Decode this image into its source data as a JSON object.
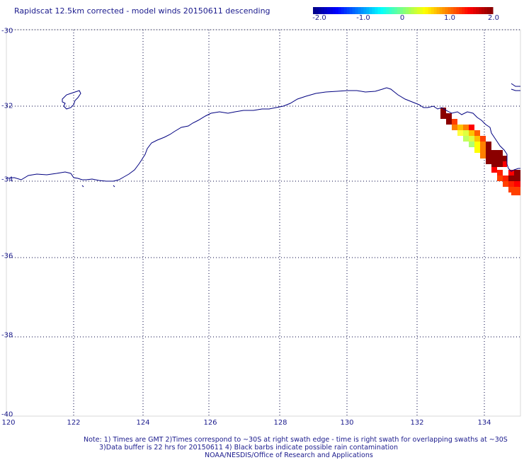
{
  "title": "Rapidscat 12.5km corrected - model winds 20150611 descending",
  "colorbar": {
    "ticks": [
      "-2.0",
      "-1.0",
      "0",
      "1.0",
      "2.0"
    ],
    "colors": [
      "#00008b",
      "#0000ff",
      "#0080ff",
      "#00ffff",
      "#80ff80",
      "#ffff00",
      "#ff8000",
      "#ff0000",
      "#8b0000"
    ]
  },
  "map": {
    "lat_labels": [
      "-30",
      "-32",
      "-34",
      "-36",
      "-38",
      "-40"
    ],
    "lon_labels": [
      "120",
      "122",
      "124",
      "126",
      "128",
      "130",
      "132",
      "134"
    ],
    "coast_color": "#000080"
  },
  "notes": {
    "line1": "Note: 1) Times are GMT 2)Times correspond to ~30S at right swath edge - time is right swath for overlapping swaths at ~30S",
    "line2": "3)Data buffer is 22 hrs for 20150611 4) Black barbs indicate possible rain contamination",
    "line3": "NOAA/NESDIS/Office of Research and Applications"
  }
}
